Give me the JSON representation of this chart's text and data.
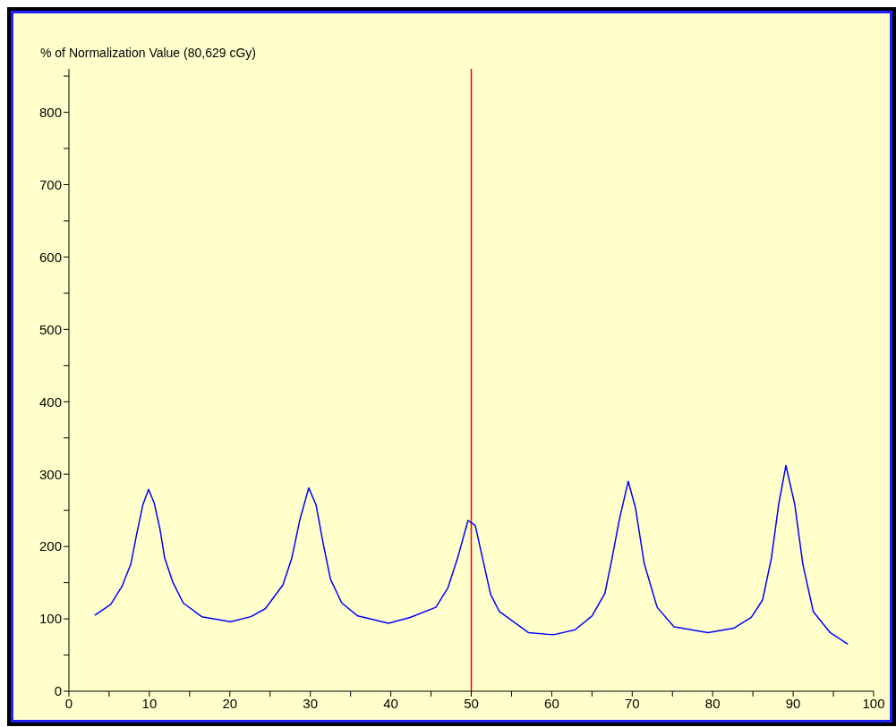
{
  "chart_data": {
    "type": "line",
    "ylabel": "% of Normalization Value (80,629 cGy)",
    "xlim": [
      0,
      100
    ],
    "xticks": [
      0,
      {
        "value": 5,
        "label": null
      },
      10,
      {
        "value": 15,
        "label": null
      },
      20,
      {
        "value": 25,
        "label": null
      },
      30,
      {
        "value": 35,
        "label": null
      },
      40,
      {
        "value": 45,
        "label": null
      },
      50,
      {
        "value": 55,
        "label": null
      },
      60,
      {
        "value": 65,
        "label": null
      },
      70,
      {
        "value": 75,
        "label": null
      },
      80,
      {
        "value": 85,
        "label": null
      },
      90,
      {
        "value": 95,
        "label": null
      },
      100
    ],
    "ylim": [
      0,
      860
    ],
    "yticks": [
      0,
      {
        "value": 50,
        "label": null
      },
      100,
      {
        "value": 150,
        "label": null
      },
      200,
      {
        "value": 250,
        "label": null
      },
      300,
      {
        "value": 350,
        "label": null
      },
      400,
      {
        "value": 450,
        "label": null
      },
      500,
      {
        "value": 550,
        "label": null
      },
      600,
      {
        "value": 650,
        "label": null
      },
      700,
      {
        "value": 750,
        "label": null
      },
      800,
      {
        "value": 850,
        "label": null
      }
    ],
    "grid": false,
    "legend": false,
    "marker": "none",
    "line_style": "solid",
    "ref_lines": [
      {
        "axis": "x",
        "value": 50,
        "color": "#ff0000"
      }
    ],
    "series": [
      {
        "color": "#0000ff",
        "x": [
          3.2,
          5.2,
          6.6,
          7.7,
          8.4,
          9.2,
          9.9,
          10.6,
          11.3,
          11.9,
          12.9,
          14.2,
          16.5,
          20.1,
          22.6,
          24.4,
          26.6,
          27.7,
          28.7,
          29.8,
          30.7,
          31.6,
          32.5,
          33.9,
          35.9,
          39.7,
          42.4,
          45.6,
          47.1,
          48.3,
          49.6,
          50.5,
          51.4,
          52.4,
          53.5,
          57.1,
          60.2,
          62.9,
          65,
          66.6,
          67.5,
          68.4,
          69.5,
          70.4,
          71.5,
          73.1,
          75.2,
          79.4,
          82.6,
          84.8,
          86.2,
          87.3,
          88.2,
          89.1,
          90.2,
          91.2,
          92.5,
          94.6,
          96.8
        ],
        "values": [
          105,
          120,
          145,
          176,
          216,
          258,
          279,
          260,
          225,
          184,
          151,
          122,
          103,
          96,
          103,
          114,
          147,
          184,
          237,
          281,
          258,
          204,
          155,
          122,
          104,
          94,
          102,
          116,
          143,
          184,
          236,
          229,
          184,
          134,
          110,
          81,
          78,
          85,
          104,
          135,
          184,
          237,
          290,
          254,
          176,
          116,
          89,
          81,
          87,
          102,
          126,
          184,
          258,
          312,
          258,
          176,
          110,
          81,
          65
        ]
      }
    ]
  }
}
